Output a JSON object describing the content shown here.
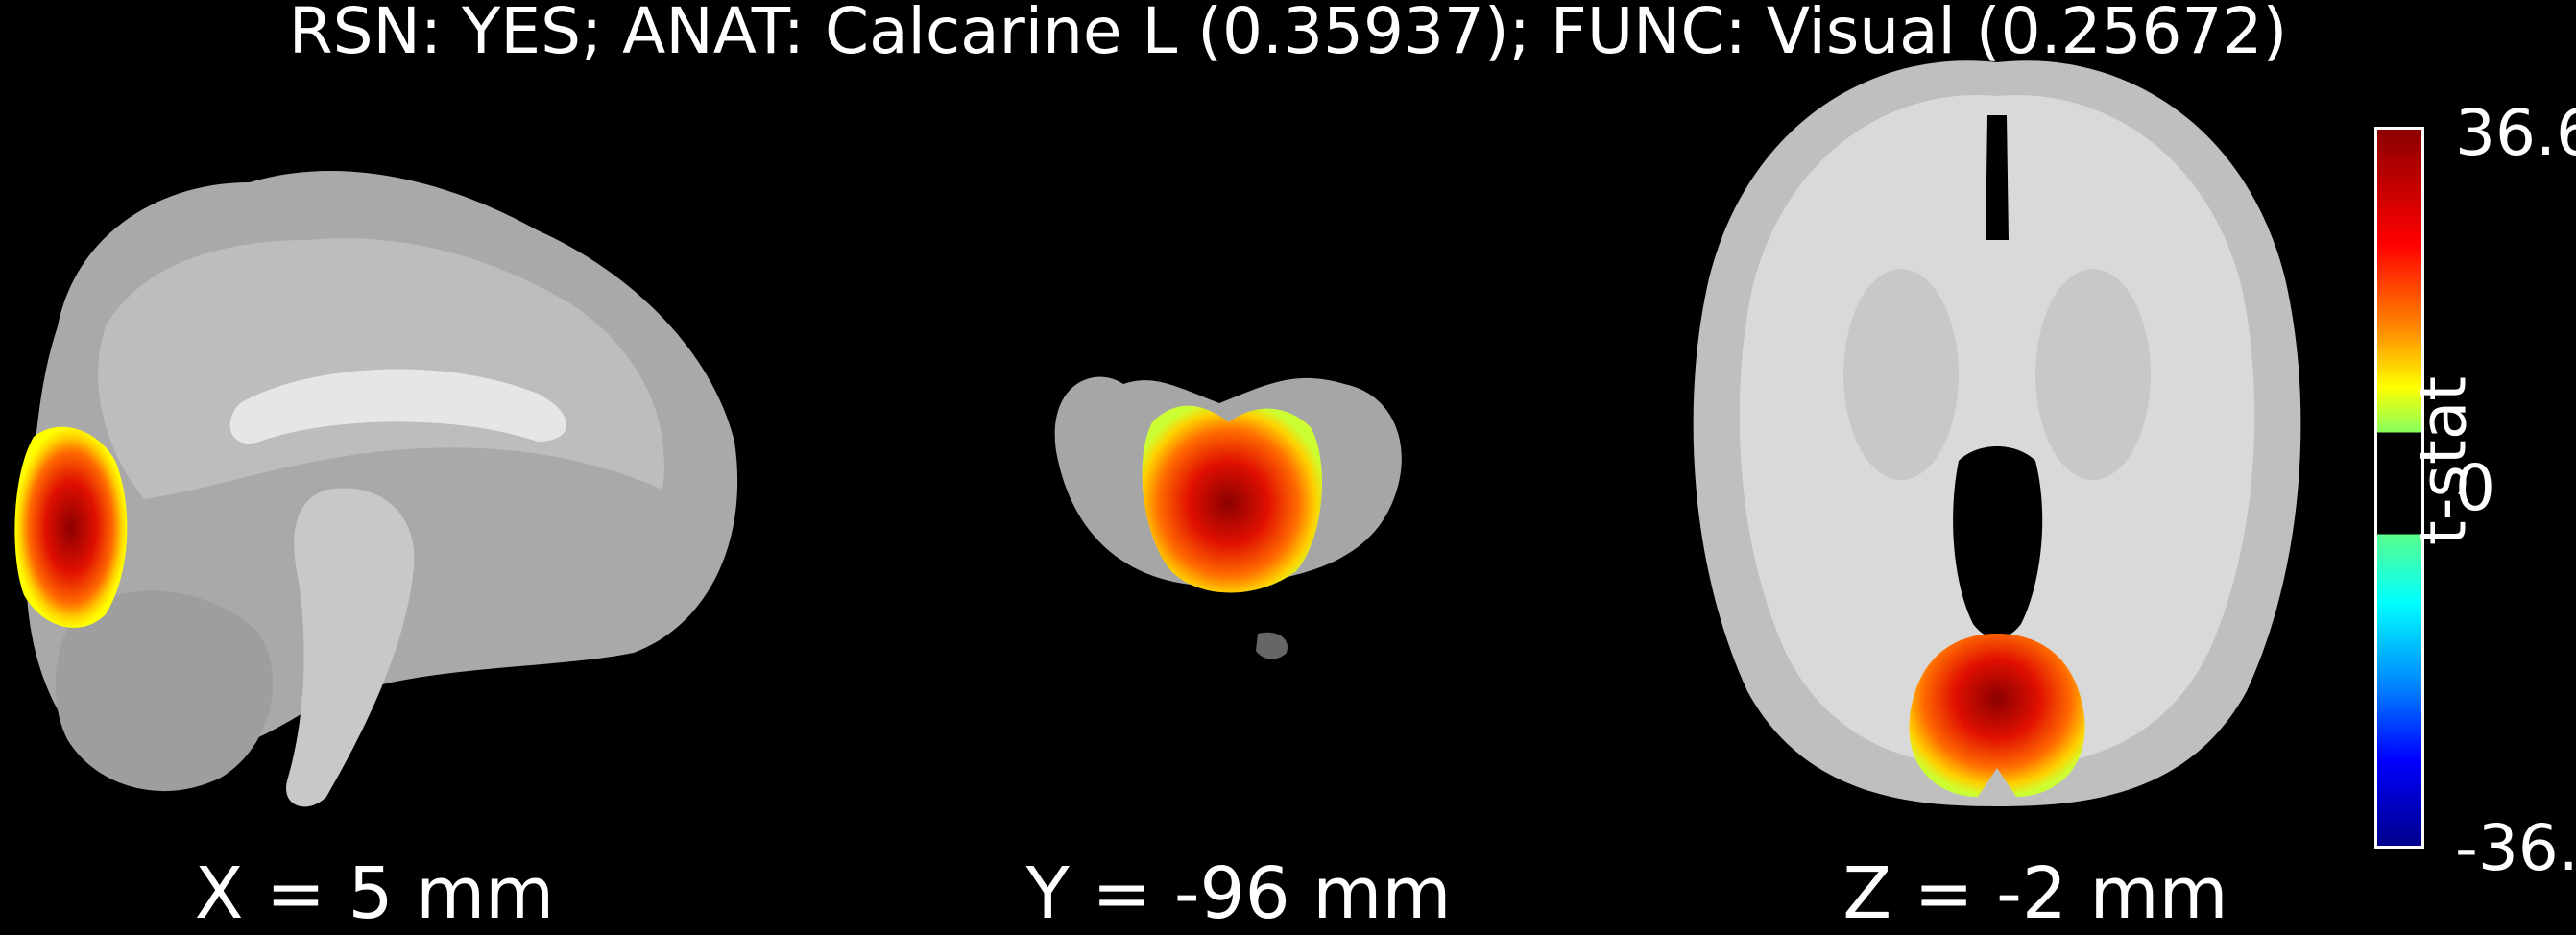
{
  "title": "RSN: YES; ANAT: Calcarine L (0.35937); FUNC: Visual (0.25672)",
  "slices": [
    {
      "label": "X = 5 mm",
      "view": "sagittal"
    },
    {
      "label": "Y = -96 mm",
      "view": "coronal"
    },
    {
      "label": "Z = -2 mm",
      "view": "axial"
    }
  ],
  "colorbar": {
    "label": "t-stat",
    "max_label": "36.6",
    "mid_label": "0",
    "min_label": "-36.",
    "colors": {
      "hot": "#8b0000",
      "warm": "#ff0000",
      "mid": "#ffff00",
      "cool": "#00ffff",
      "cold": "#00008b"
    }
  }
}
